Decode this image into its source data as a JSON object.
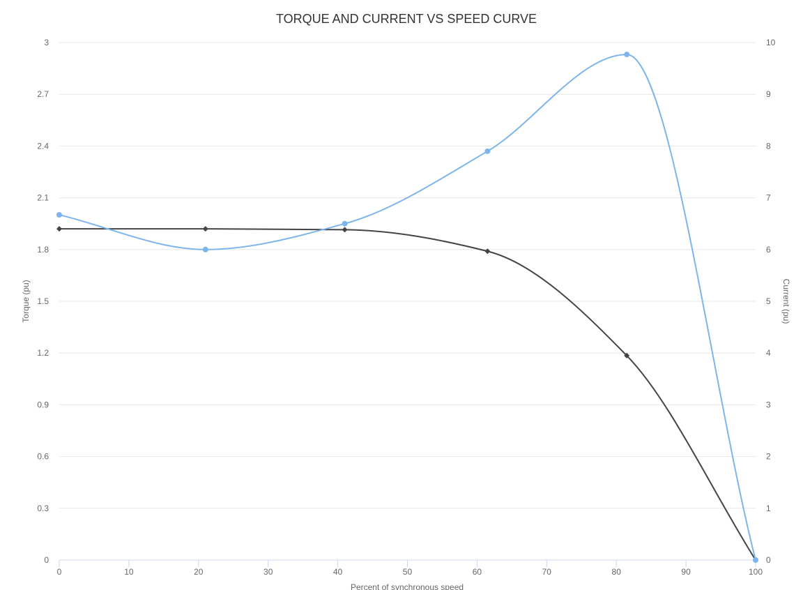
{
  "chart_data": {
    "type": "line",
    "title": "TORQUE AND CURRENT VS SPEED CURVE",
    "xlabel": "Percent of synchronous speed",
    "ylabel_left": "Torque (pu)",
    "ylabel_right": "Current (pu)",
    "xlim": [
      0,
      100
    ],
    "ylim_left": [
      0,
      3
    ],
    "ylim_right": [
      0,
      10
    ],
    "x_ticks": [
      "0",
      "10",
      "20",
      "30",
      "40",
      "50",
      "60",
      "70",
      "80",
      "90",
      "100"
    ],
    "y_left_ticks": [
      "0",
      "0.3",
      "0.6",
      "0.9",
      "1.2",
      "1.5",
      "1.8",
      "2.1",
      "2.4",
      "2.7",
      "3"
    ],
    "y_right_ticks": [
      "0",
      "1",
      "2",
      "3",
      "4",
      "5",
      "6",
      "7",
      "8",
      "9",
      "10"
    ],
    "grid": true,
    "legend": "none",
    "series": [
      {
        "axis": "left",
        "color": "#434348",
        "marker": "diamond",
        "x": [
          0,
          21,
          41,
          61.5,
          81.5,
          100
        ],
        "y": [
          1.92,
          1.92,
          1.915,
          1.79,
          1.185,
          0
        ]
      },
      {
        "axis": "right",
        "color": "#7cb5ec",
        "marker": "circle",
        "x": [
          0,
          21,
          41,
          61.5,
          81.5,
          100
        ],
        "y": [
          6.67,
          6.0,
          6.5,
          7.9,
          9.77,
          0
        ]
      }
    ]
  }
}
